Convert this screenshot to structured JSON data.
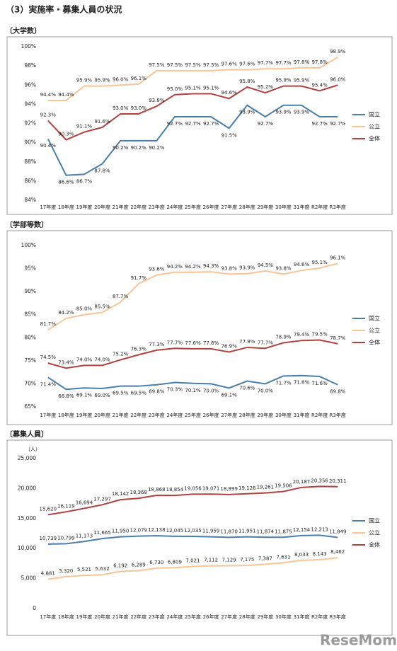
{
  "heading": "（3）実施率・募集人員の状況",
  "watermark": "ReseMom",
  "chart_data": [
    {
      "type": "line",
      "title": "〔大学数〕",
      "categories": [
        "17年度",
        "18年度",
        "19年度",
        "20年度",
        "21年度",
        "22年度",
        "23年度",
        "24年度",
        "25年度",
        "26年度",
        "27年度",
        "28年度",
        "29年度",
        "30年度",
        "31年度",
        "R2年度",
        "R3年度"
      ],
      "ylim": [
        84,
        100
      ],
      "yticks": [
        {
          "value": 84,
          "label": "84%"
        },
        {
          "value": 86,
          "label": "86%"
        },
        {
          "value": 88,
          "label": "88%"
        },
        {
          "value": 90,
          "label": "90%"
        },
        {
          "value": 92,
          "label": "92%"
        },
        {
          "value": 94,
          "label": "94%"
        },
        {
          "value": 96,
          "label": "96%"
        },
        {
          "value": 98,
          "label": "98%"
        },
        {
          "value": 100,
          "label": "100%"
        }
      ],
      "grid": false,
      "legend": "right",
      "series": [
        {
          "name": "国立",
          "color": "#4a7eab",
          "values": [
            90.4,
            86.6,
            86.7,
            87.8,
            90.2,
            90.2,
            90.2,
            92.7,
            92.7,
            92.7,
            91.5,
            93.9,
            92.7,
            93.9,
            93.9,
            92.7,
            92.7
          ],
          "value_labels": [
            "90.4%",
            "86.6%",
            "86.7%",
            "87.8%",
            "90.2%",
            "90.2%",
            "90.2%",
            "92.7%",
            "92.7%",
            "92.7%",
            "91.5%",
            "93.9%",
            "92.7%",
            "93.9%",
            "93.9%",
            "92.7%",
            "92.7%"
          ]
        },
        {
          "name": "公立",
          "color": "#f7c597",
          "values": [
            94.4,
            94.4,
            95.9,
            95.9,
            96.0,
            96.1,
            97.5,
            97.5,
            97.5,
            97.5,
            97.6,
            97.6,
            97.7,
            97.7,
            97.8,
            97.8,
            98.9
          ],
          "value_labels": [
            "94.4%",
            "94.4%",
            "95.9%",
            "95.9%",
            "96.0%",
            "96.1%",
            "97.5%",
            "97.5%",
            "97.5%",
            "97.5%",
            "97.6%",
            "97.6%",
            "97.7%",
            "97.7%",
            "97.8%",
            "97.8%",
            "98.9%"
          ]
        },
        {
          "name": "全体",
          "color": "#b0413e",
          "values": [
            92.3,
            90.3,
            91.1,
            91.6,
            93.0,
            93.0,
            93.8,
            95.0,
            95.1,
            95.1,
            94.6,
            95.8,
            95.2,
            95.9,
            95.9,
            95.4,
            96.0
          ],
          "value_labels": [
            "92.3%",
            "90.3%",
            "91.1%",
            "91.6%",
            "93.0%",
            "93.0%",
            "93.8%",
            "95.0%",
            "95.1%",
            "95.1%",
            "94.6%",
            "95.8%",
            "95.2%",
            "95.9%",
            "95.9%",
            "95.4%",
            "96.0%"
          ]
        }
      ]
    },
    {
      "type": "line",
      "title": "〔学部等数〕",
      "categories": [
        "17年度",
        "18年度",
        "19年度",
        "20年度",
        "21年度",
        "22年度",
        "23年度",
        "24年度",
        "25年度",
        "26年度",
        "27年度",
        "28年度",
        "29年度",
        "30年度",
        "31年度",
        "R2年度",
        "R3年度"
      ],
      "ylim": [
        65,
        100
      ],
      "yticks": [
        {
          "value": 65,
          "label": "65%"
        },
        {
          "value": 70,
          "label": "70%"
        },
        {
          "value": 75,
          "label": "75%"
        },
        {
          "value": 80,
          "label": "80%"
        },
        {
          "value": 85,
          "label": "85%"
        },
        {
          "value": 90,
          "label": "90%"
        },
        {
          "value": 95,
          "label": "95%"
        },
        {
          "value": 100,
          "label": "100%"
        }
      ],
      "grid": false,
      "legend": "right",
      "series": [
        {
          "name": "国立",
          "color": "#4a7eab",
          "values": [
            71.4,
            68.8,
            69.1,
            69.0,
            69.5,
            69.5,
            69.8,
            70.3,
            70.1,
            70.0,
            69.1,
            70.6,
            70.0,
            71.7,
            71.8,
            71.6,
            69.8
          ],
          "value_labels": [
            "71.4%",
            "68.8%",
            "69.1%",
            "69.0%",
            "69.5%",
            "69.5%",
            "69.8%",
            "70.3%",
            "70.1%",
            "70.0%",
            "69.1%",
            "70.6%",
            "70.0%",
            "71.7%",
            "71.8%",
            "71.6%",
            "69.8%"
          ]
        },
        {
          "name": "公立",
          "color": "#f7c597",
          "values": [
            81.7,
            84.2,
            85.0,
            85.5,
            87.7,
            91.7,
            93.6,
            94.2,
            94.2,
            94.3,
            93.8,
            93.9,
            94.5,
            93.8,
            94.6,
            95.1,
            96.1
          ],
          "value_labels": [
            "81.7%",
            "84.2%",
            "85.0%",
            "85.5%",
            "87.7%",
            "91.7%",
            "93.6%",
            "94.2%",
            "94.2%",
            "94.3%",
            "93.8%",
            "93.9%",
            "94.5%",
            "93.8%",
            "94.6%",
            "95.1%",
            "96.1%"
          ]
        },
        {
          "name": "全体",
          "color": "#b0413e",
          "values": [
            74.5,
            73.4,
            74.0,
            74.0,
            75.2,
            76.3,
            77.3,
            77.7,
            77.6,
            77.6,
            76.9,
            77.9,
            77.7,
            78.9,
            79.4,
            79.5,
            78.7
          ],
          "value_labels": [
            "74.5%",
            "73.4%",
            "74.0%",
            "74.0%",
            "75.2%",
            "76.3%",
            "77.3%",
            "77.7%",
            "77.6%",
            "77.6%",
            "76.9%",
            "77.9%",
            "77.7%",
            "78.9%",
            "79.4%",
            "79.5%",
            "78.7%"
          ]
        }
      ]
    },
    {
      "type": "line",
      "title": "〔募集人員〕",
      "y_label": "（人）",
      "categories": [
        "17年度",
        "18年度",
        "19年度",
        "20年度",
        "21年度",
        "22年度",
        "23年度",
        "24年度",
        "25年度",
        "26年度",
        "27年度",
        "28年度",
        "29年度",
        "30年度",
        "31年度",
        "R2年度",
        "R3年度"
      ],
      "ylim": [
        0,
        25000
      ],
      "yticks": [
        0,
        {
          "value": 5000,
          "label": "5,000"
        },
        {
          "value": 10000,
          "label": "10,000"
        },
        {
          "value": 15000,
          "label": "15,000"
        },
        {
          "value": 20000,
          "label": "20,000"
        },
        {
          "value": 25000,
          "label": "25,000"
        }
      ],
      "grid": false,
      "legend": "right",
      "series": [
        {
          "name": "国立",
          "color": "#4a7eab",
          "values": [
            10739,
            10799,
            11173,
            11665,
            11950,
            12079,
            12138,
            12045,
            12035,
            11959,
            11870,
            11951,
            11874,
            11875,
            12154,
            12213,
            11849
          ],
          "value_labels": [
            "10,739",
            "10,799",
            "11,173",
            "11,665",
            "11,950",
            "12,079",
            "12,138",
            "12,045",
            "12,035",
            "11,959",
            "11,870",
            "11,951",
            "11,874",
            "11,875",
            "12,154",
            "12,213",
            "11,849"
          ]
        },
        {
          "name": "公立",
          "color": "#f7c597",
          "values": [
            4881,
            5320,
            5521,
            5632,
            6192,
            6289,
            6730,
            6809,
            7021,
            7112,
            7129,
            7175,
            7387,
            7631,
            8033,
            8143,
            8462
          ],
          "value_labels": [
            "4,881",
            "5,320",
            "5,521",
            "5,632",
            "6,192",
            "6,289",
            "6,730",
            "6,809",
            "7,021",
            "7,112",
            "7,129",
            "7,175",
            "7,387",
            "7,631",
            "8,033",
            "8,143",
            "8,462"
          ]
        },
        {
          "name": "全体",
          "color": "#b0413e",
          "values": [
            15620,
            16119,
            16694,
            17297,
            18142,
            18368,
            18868,
            18854,
            19056,
            19071,
            18999,
            19126,
            19261,
            19506,
            20187,
            20356,
            20311
          ],
          "value_labels": [
            "15,620",
            "16,119",
            "16,694",
            "17,297",
            "18,142",
            "18,368",
            "18,868",
            "18,854",
            "19,056",
            "19,071",
            "18,999",
            "19,126",
            "19,261",
            "19,506",
            "20,187",
            "20,356",
            "20,311"
          ]
        }
      ]
    }
  ]
}
